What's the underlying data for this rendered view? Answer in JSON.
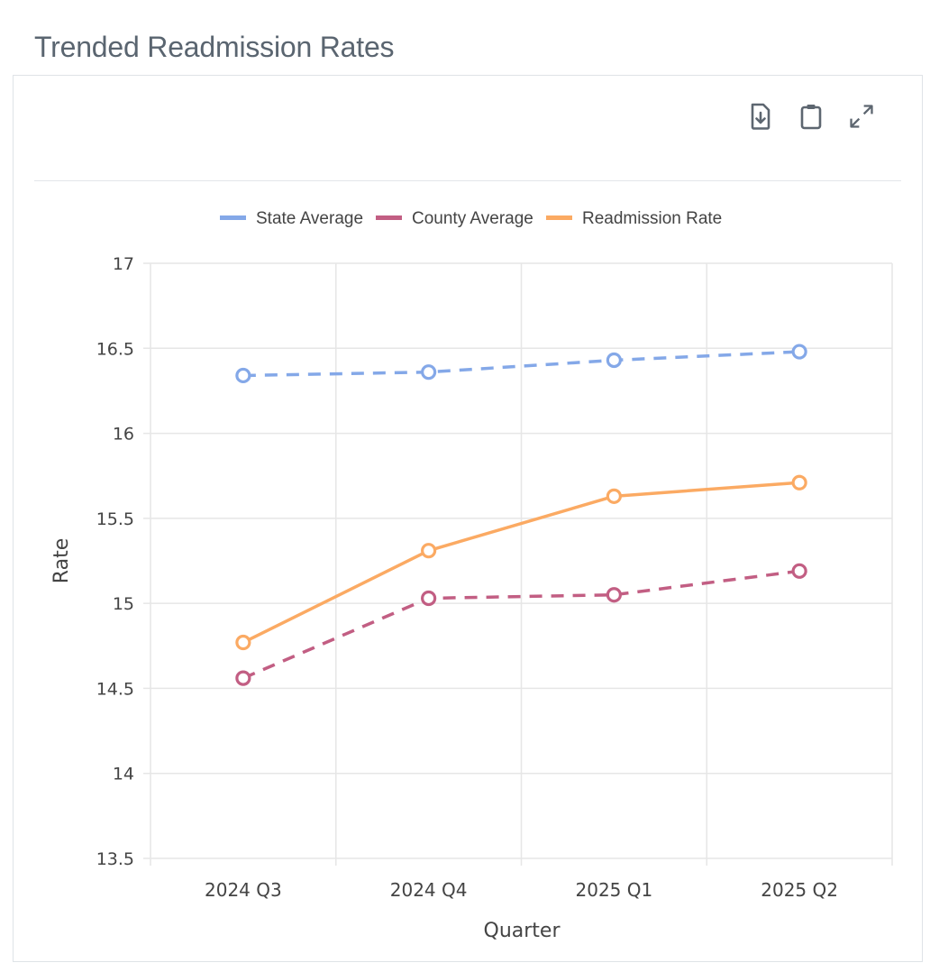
{
  "page": {
    "title": "Trended Readmission Rates"
  },
  "toolbar": {
    "buttons": [
      {
        "name": "download-button",
        "icon": "file-download-icon",
        "label": "Download"
      },
      {
        "name": "copy-button",
        "icon": "clipboard-icon",
        "label": "Copy"
      },
      {
        "name": "expand-button",
        "icon": "expand-icon",
        "label": "Expand"
      }
    ]
  },
  "chart_data": {
    "type": "line",
    "title": "Trended Readmission Rates",
    "xlabel": "Quarter",
    "ylabel": "Rate",
    "categories": [
      "2024 Q3",
      "2024 Q4",
      "2025 Q1",
      "2025 Q2"
    ],
    "ylim": [
      13.5,
      17
    ],
    "yticks": [
      13.5,
      14,
      14.5,
      15,
      15.5,
      16,
      16.5,
      17
    ],
    "ytick_labels": [
      "13.5",
      "14",
      "14.5",
      "15",
      "15.5",
      "16",
      "16.5",
      "17"
    ],
    "grid": true,
    "legend_position": "top-center",
    "series": [
      {
        "name": "State Average",
        "color": "#84a8e8",
        "dashed": true,
        "values": [
          16.34,
          16.36,
          16.43,
          16.48
        ]
      },
      {
        "name": "County Average",
        "color": "#c25e83",
        "dashed": true,
        "values": [
          14.56,
          15.03,
          15.05,
          15.19
        ]
      },
      {
        "name": "Readmission Rate",
        "color": "#fbaa63",
        "dashed": false,
        "values": [
          14.77,
          15.31,
          15.63,
          15.71
        ]
      }
    ]
  }
}
